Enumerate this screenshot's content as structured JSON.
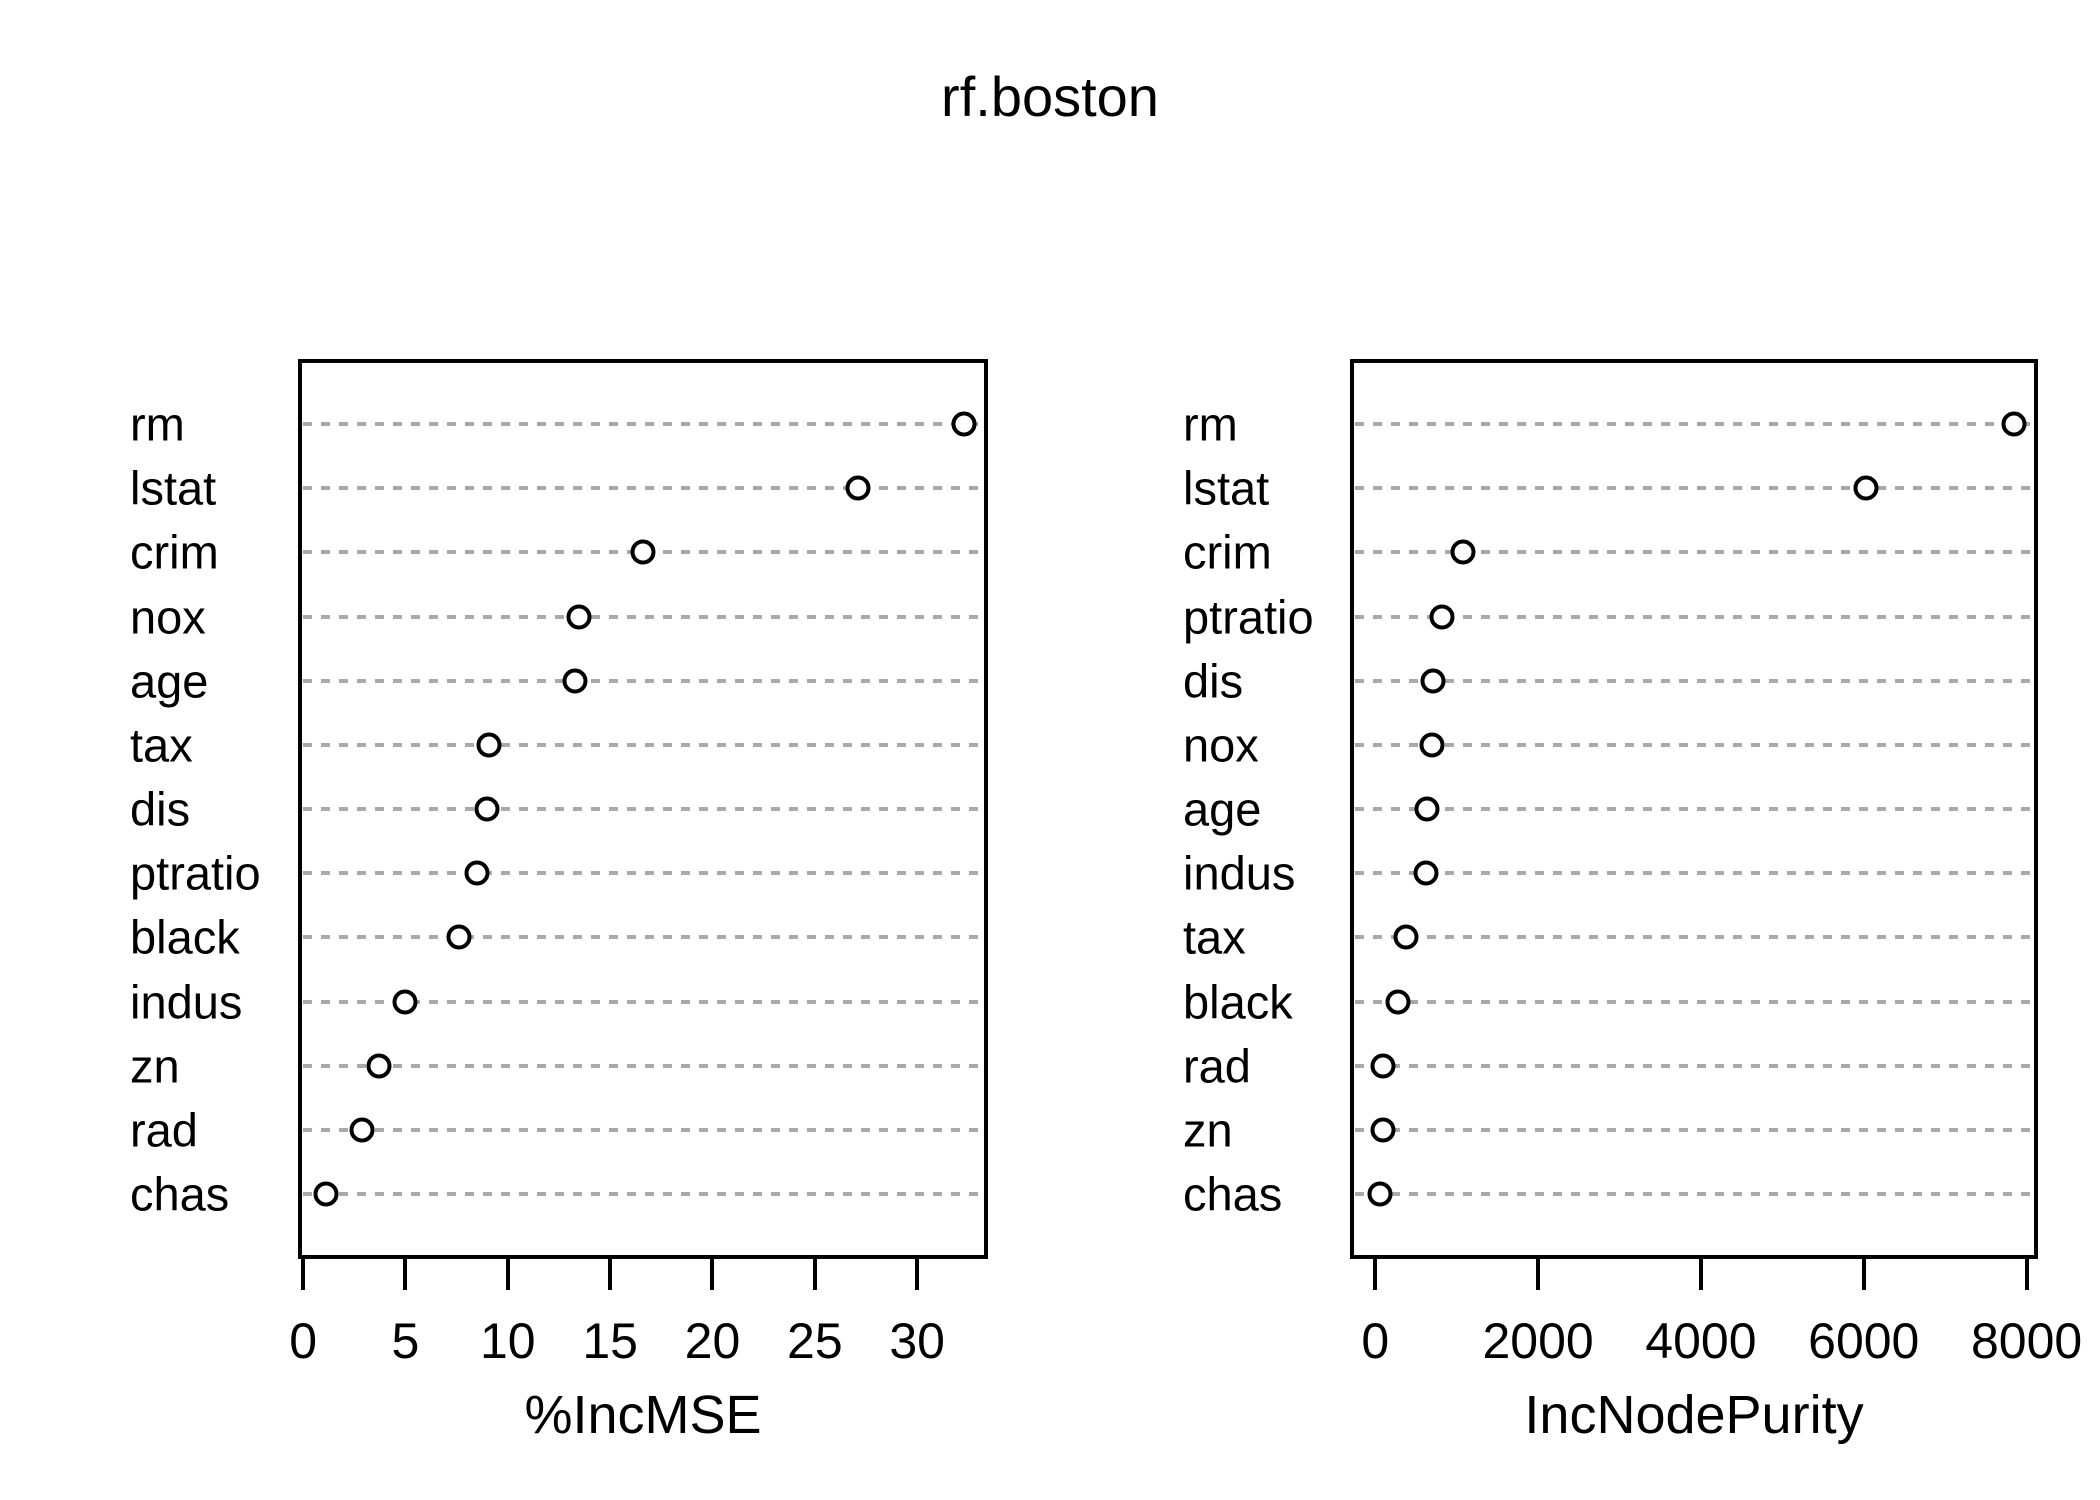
{
  "title": "rf.boston",
  "colors": {
    "background": "#ffffff",
    "text": "#000000",
    "box": "#000000",
    "grid": "#a9a9a9",
    "point_stroke": "#000000",
    "point_fill": "#ffffff"
  },
  "chart_data": [
    {
      "type": "scatter",
      "subtype": "dotchart",
      "xlabel": "%IncMSE",
      "categories": [
        "rm",
        "lstat",
        "crim",
        "nox",
        "age",
        "tax",
        "dis",
        "ptratio",
        "black",
        "indus",
        "zn",
        "rad",
        "chas"
      ],
      "values": [
        32.3,
        27.1,
        16.6,
        13.5,
        13.3,
        9.1,
        9.0,
        8.5,
        7.6,
        5.0,
        3.7,
        2.9,
        1.1
      ],
      "xticks": [
        0,
        5,
        10,
        15,
        20,
        25,
        30
      ],
      "xtick_labels": [
        "0",
        "5",
        "10",
        "15",
        "20",
        "25",
        "30"
      ],
      "xlim": [
        -0.25,
        33.46
      ],
      "grid": true,
      "grid_style": "dashed",
      "marker": "open-circle",
      "legend": "none"
    },
    {
      "type": "scatter",
      "subtype": "dotchart",
      "xlabel": "IncNodePurity",
      "categories": [
        "rm",
        "lstat",
        "crim",
        "ptratio",
        "dis",
        "nox",
        "age",
        "indus",
        "tax",
        "black",
        "rad",
        "zn",
        "chas"
      ],
      "values": [
        7840,
        6030,
        1080,
        820,
        715,
        700,
        630,
        620,
        380,
        280,
        100,
        90,
        60
      ],
      "xticks": [
        0,
        2000,
        4000,
        6000,
        8000
      ],
      "xtick_labels": [
        "0",
        "2000",
        "4000",
        "6000",
        "8000"
      ],
      "xlim": [
        -310,
        8140
      ],
      "grid": true,
      "grid_style": "dashed",
      "marker": "open-circle",
      "legend": "none"
    }
  ]
}
